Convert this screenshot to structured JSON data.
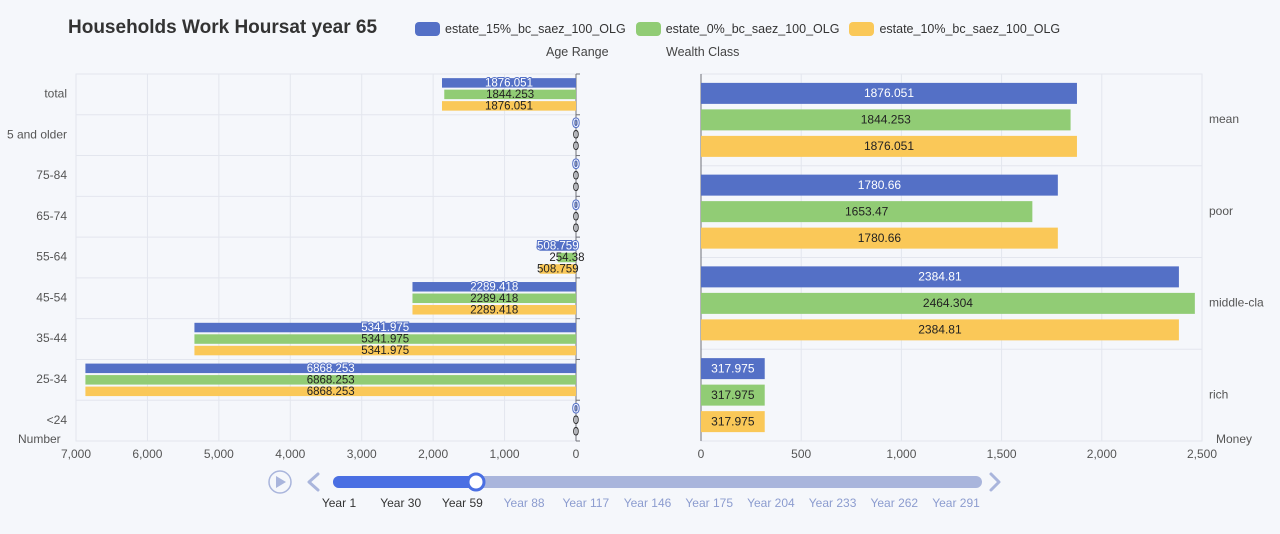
{
  "title": "Households Work Hoursat year 65",
  "legend": [
    {
      "name": "estate_15%_bc_saez_100_OLG",
      "color": "#5470c6"
    },
    {
      "name": "estate_0%_bc_saez_100_OLG",
      "color": "#91cc75"
    },
    {
      "name": "estate_10%_bc_saez_100_OLG",
      "color": "#fac858"
    }
  ],
  "left_panel_subtitle": "Age Range",
  "right_panel_subtitle": "Wealth Class",
  "timeline": {
    "labels": [
      "Year 1",
      "Year 30",
      "Year 59",
      "Year 88",
      "Year 117",
      "Year 146",
      "Year 175",
      "Year 204",
      "Year 233",
      "Year 262",
      "Year 291"
    ],
    "current_index": 2,
    "play_icon": "play-icon",
    "prev_icon": "chevron-left-icon",
    "next_icon": "chevron-right-icon",
    "active_color": "#4a6fe3",
    "inactive_color": "#a9b5dc"
  },
  "chart_data": [
    {
      "type": "bar",
      "orientation": "horizontal",
      "xlabel": "Number",
      "xlim": [
        0,
        7000
      ],
      "x_inverted": true,
      "x_ticks": [
        "7,000",
        "6,000",
        "5,000",
        "4,000",
        "3,000",
        "2,000",
        "1,000",
        "0"
      ],
      "categories": [
        "total",
        "5 and older",
        "75-84",
        "65-74",
        "55-64",
        "45-54",
        "35-44",
        "25-34",
        "<24"
      ],
      "series": [
        {
          "name": "estate_15%_bc_saez_100_OLG",
          "values": [
            1876.051,
            0,
            0,
            0,
            508.759,
            2289.418,
            5341.975,
            6868.253,
            0
          ]
        },
        {
          "name": "estate_0%_bc_saez_100_OLG",
          "values": [
            1844.253,
            0,
            0,
            0,
            254.38,
            2289.418,
            5341.975,
            6868.253,
            0
          ]
        },
        {
          "name": "estate_10%_bc_saez_100_OLG",
          "values": [
            1876.051,
            0,
            0,
            0,
            508.759,
            2289.418,
            5341.975,
            6868.253,
            0
          ]
        }
      ],
      "value_labels": [
        [
          "1876.051",
          "0",
          "0",
          "0",
          "508.759",
          "2289.418",
          "5341.975",
          "6868.253",
          "0"
        ],
        [
          "1844.253",
          "0",
          "0",
          "0",
          "254.38",
          "2289.418",
          "5341.975",
          "6868.253",
          "0"
        ],
        [
          "1876.051",
          "0",
          "0",
          "0",
          "508.759",
          "2289.418",
          "5341.975",
          "6868.253",
          "0"
        ]
      ],
      "grid": true
    },
    {
      "type": "bar",
      "orientation": "horizontal",
      "xlabel": "Money",
      "xlim": [
        0,
        2500
      ],
      "x_ticks": [
        "0",
        "500",
        "1,000",
        "1,500",
        "2,000",
        "2,500"
      ],
      "categories": [
        "mean",
        "poor",
        "middle-cla",
        "rich"
      ],
      "series": [
        {
          "name": "estate_15%_bc_saez_100_OLG",
          "values": [
            1876.051,
            1780.66,
            2384.81,
            317.975
          ]
        },
        {
          "name": "estate_0%_bc_saez_100_OLG",
          "values": [
            1844.253,
            1653.47,
            2464.304,
            317.975
          ]
        },
        {
          "name": "estate_10%_bc_saez_100_OLG",
          "values": [
            1876.051,
            1780.66,
            2384.81,
            317.975
          ]
        }
      ],
      "value_labels": [
        [
          "1876.051",
          "1780.66",
          "2384.81",
          "317.975"
        ],
        [
          "1844.253",
          "1653.47",
          "2464.304",
          "317.975"
        ],
        [
          "1876.051",
          "1780.66",
          "2384.81",
          "317.975"
        ]
      ],
      "grid": true
    }
  ]
}
